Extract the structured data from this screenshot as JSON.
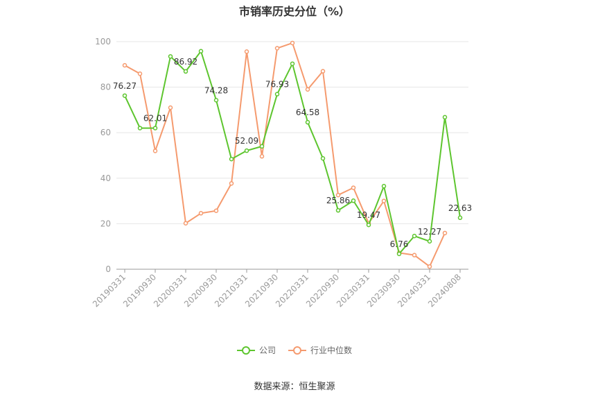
{
  "title": "市销率历史分位（%）",
  "source": "数据来源：恒生聚源",
  "chart_data": {
    "type": "line",
    "x": [
      "20190331",
      "20190630",
      "20190930",
      "20191231",
      "20200331",
      "20200630",
      "20200930",
      "20201231",
      "20210331",
      "20210630",
      "20210930",
      "20211231",
      "20220331",
      "20220630",
      "20220930",
      "20221231",
      "20230331",
      "20230630",
      "20230930",
      "20231231",
      "20240331",
      "20240630",
      "20240808"
    ],
    "xticks": [
      "20190331",
      "20190930",
      "20200331",
      "20200930",
      "20210331",
      "20210930",
      "20220331",
      "20220930",
      "20230331",
      "20230930",
      "20240331",
      "20240808"
    ],
    "ylim": [
      0,
      100
    ],
    "yticks": [
      0,
      20,
      40,
      60,
      80,
      100
    ],
    "grid": true,
    "legend_position": "bottom",
    "series": [
      {
        "name": "公司",
        "color": "#5dc52e",
        "values": [
          76.27,
          62.01,
          62.01,
          93.5,
          86.92,
          95.8,
          74.28,
          48.4,
          52.09,
          54.0,
          76.93,
          90.3,
          64.58,
          48.7,
          25.86,
          30.1,
          19.47,
          36.5,
          6.76,
          14.6,
          12.27,
          66.8,
          22.63
        ],
        "labels": {
          "0": "76.27",
          "2": "62.01",
          "4": "86.92",
          "6": "74.28",
          "8": "52.09",
          "10": "76.93",
          "12": "64.58",
          "14": "25.86",
          "16": "19.47",
          "18": "6.76",
          "20": "12.27",
          "22": "22.63"
        }
      },
      {
        "name": "行业中位数",
        "color": "#f59a6e",
        "values": [
          89.6,
          85.9,
          52.0,
          71.0,
          20.2,
          24.6,
          25.7,
          37.7,
          95.6,
          49.6,
          97.1,
          99.4,
          79.0,
          87.0,
          32.6,
          35.8,
          20.2,
          30.0,
          7.2,
          6.2,
          1.2,
          15.9,
          null
        ]
      }
    ]
  }
}
